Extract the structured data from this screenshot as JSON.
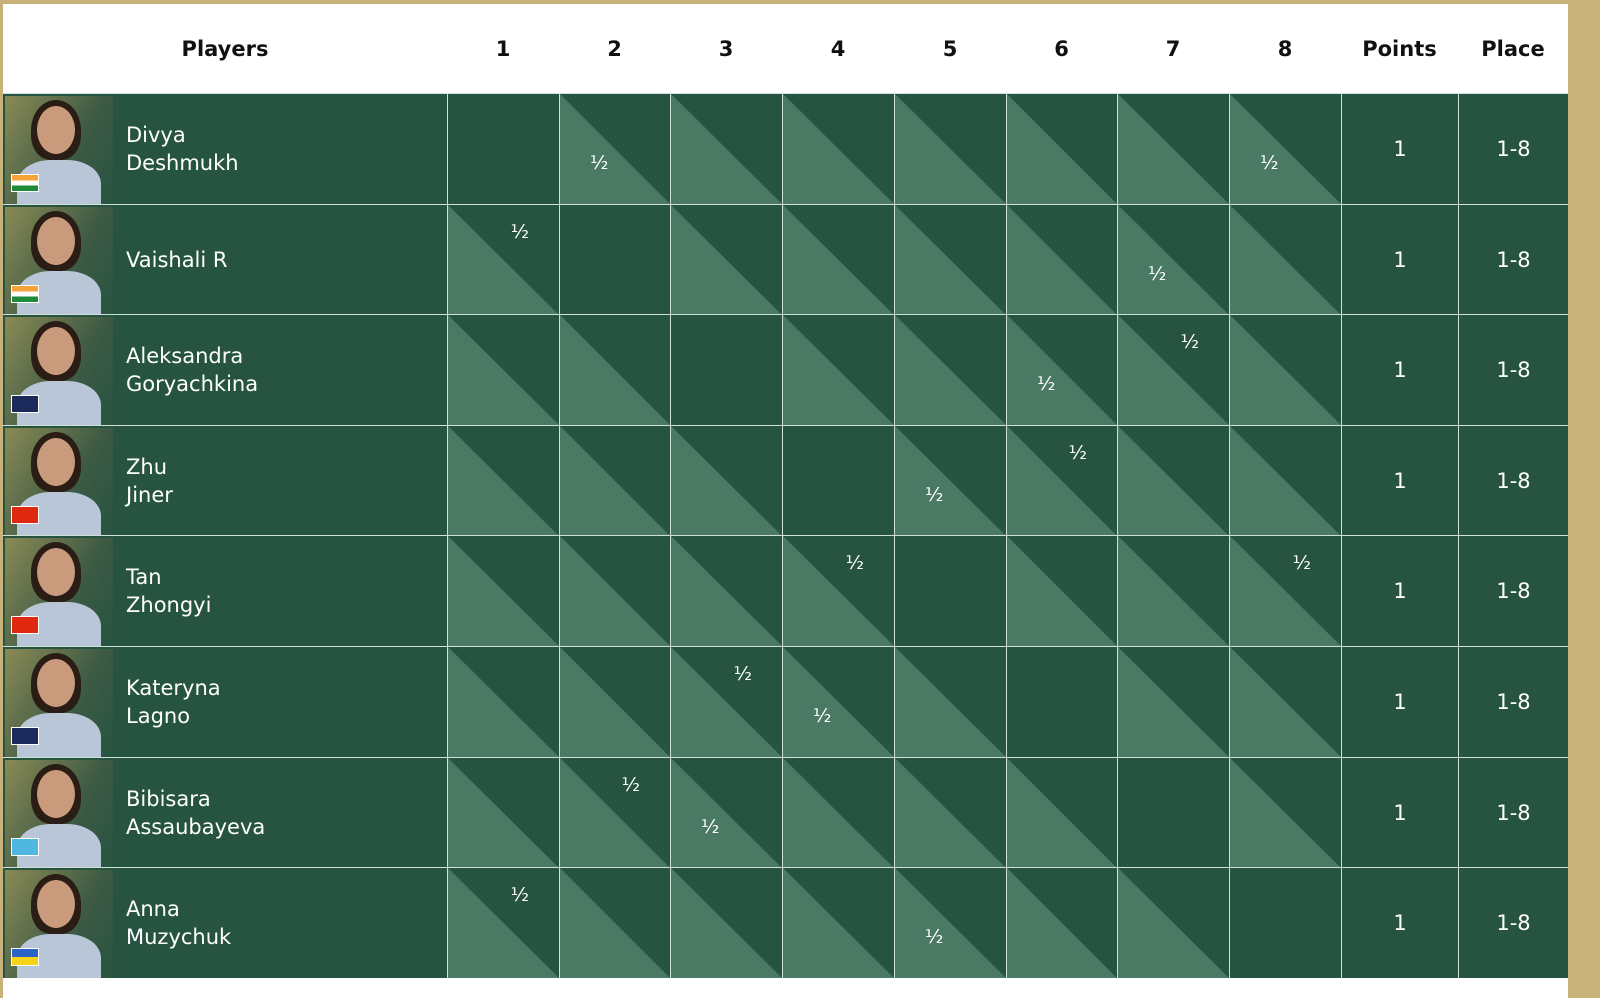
{
  "header": {
    "players": "Players",
    "rounds": [
      "1",
      "2",
      "3",
      "4",
      "5",
      "6",
      "7",
      "8"
    ],
    "points": "Points",
    "place": "Place"
  },
  "colors": {
    "cell_dark": "#265441",
    "cell_light": "#4a7a63",
    "frame": "#c9b27a"
  },
  "players": [
    {
      "first": "Divya",
      "last": "Deshmukh",
      "flag": "india-flag",
      "points": "1",
      "place": "1-8",
      "results": [
        {
          "col": 2,
          "pos": "lower",
          "text": "½"
        },
        {
          "col": 8,
          "pos": "lower",
          "text": "½"
        }
      ]
    },
    {
      "first": "Vaishali R",
      "last": "",
      "flag": "india-flag",
      "points": "1",
      "place": "1-8",
      "results": [
        {
          "col": 1,
          "pos": "upper",
          "text": "½"
        },
        {
          "col": 7,
          "pos": "lower",
          "text": "½"
        }
      ]
    },
    {
      "first": "Aleksandra",
      "last": "Goryachkina",
      "flag": "fide-flag",
      "points": "1",
      "place": "1-8",
      "results": [
        {
          "col": 6,
          "pos": "lower",
          "text": "½"
        },
        {
          "col": 7,
          "pos": "upper",
          "text": "½"
        }
      ]
    },
    {
      "first": "Zhu",
      "last": "Jiner",
      "flag": "china-flag",
      "points": "1",
      "place": "1-8",
      "results": [
        {
          "col": 5,
          "pos": "lower",
          "text": "½"
        },
        {
          "col": 6,
          "pos": "upper",
          "text": "½"
        }
      ]
    },
    {
      "first": "Tan",
      "last": "Zhongyi",
      "flag": "china-flag",
      "points": "1",
      "place": "1-8",
      "results": [
        {
          "col": 4,
          "pos": "upper",
          "text": "½"
        },
        {
          "col": 8,
          "pos": "upper",
          "text": "½"
        }
      ]
    },
    {
      "first": "Kateryna",
      "last": "Lagno",
      "flag": "fide-flag",
      "points": "1",
      "place": "1-8",
      "results": [
        {
          "col": 3,
          "pos": "upper",
          "text": "½"
        },
        {
          "col": 4,
          "pos": "lower",
          "text": "½"
        }
      ]
    },
    {
      "first": "Bibisara",
      "last": "Assaubayeva",
      "flag": "kazakhstan-flag",
      "points": "1",
      "place": "1-8",
      "results": [
        {
          "col": 2,
          "pos": "upper",
          "text": "½"
        },
        {
          "col": 3,
          "pos": "lower",
          "text": "½"
        }
      ]
    },
    {
      "first": "Anna",
      "last": "Muzychuk",
      "flag": "ukraine-flag",
      "points": "1",
      "place": "1-8",
      "results": [
        {
          "col": 1,
          "pos": "upper",
          "text": "½"
        },
        {
          "col": 5,
          "pos": "lower",
          "text": "½"
        }
      ]
    }
  ]
}
